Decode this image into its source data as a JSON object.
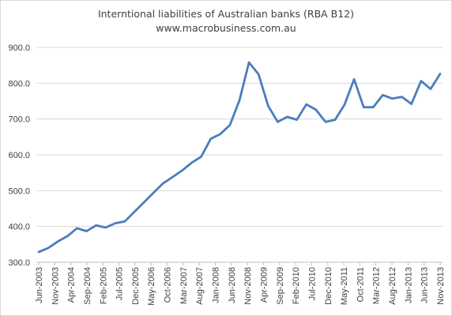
{
  "chart_data": {
    "type": "line",
    "title": "Interntional liabilities of Australian banks (RBA B12)",
    "subtitle": "www.macrobusiness.com.au",
    "xlabel": "",
    "ylabel": "",
    "ylim": [
      300,
      900
    ],
    "yticks": [
      "300.0",
      "400.0",
      "500.0",
      "600.0",
      "700.0",
      "800.0",
      "900.0"
    ],
    "grid": true,
    "legend": "none",
    "line_color": "#4a7ebb",
    "x_tick_labels": [
      "Jun-2003",
      "Nov-2003",
      "Apr-2004",
      "Sep-2004",
      "Feb-2005",
      "Jul-2005",
      "Dec-2005",
      "May-2006",
      "Oct-2006",
      "Mar-2007",
      "Aug-2007",
      "Jan-2008",
      "Jun-2008",
      "Nov-2008",
      "Apr-2009",
      "Sep-2009",
      "Feb-2010",
      "Jul-2010",
      "Dec-2010",
      "May-2011",
      "Oct-2011",
      "Mar-2012",
      "Aug-2012",
      "Jan-2013",
      "Jun-2013",
      "Nov-2013"
    ],
    "x": [
      "Jun-2003",
      "Sep-2003",
      "Dec-2003",
      "Mar-2004",
      "Jun-2004",
      "Sep-2004",
      "Dec-2004",
      "Mar-2005",
      "Jun-2005",
      "Sep-2005",
      "Dec-2005",
      "Mar-2006",
      "Jun-2006",
      "Sep-2006",
      "Dec-2006",
      "Mar-2007",
      "Jun-2007",
      "Sep-2007",
      "Dec-2007",
      "Mar-2008",
      "Jun-2008",
      "Sep-2008",
      "Dec-2008",
      "Mar-2009",
      "Jun-2009",
      "Sep-2009",
      "Dec-2009",
      "Mar-2010",
      "Jun-2010",
      "Sep-2010",
      "Dec-2010",
      "Mar-2011",
      "Jun-2011",
      "Sep-2011",
      "Dec-2011",
      "Mar-2012",
      "Jun-2012",
      "Sep-2012",
      "Dec-2012",
      "Mar-2013",
      "Jun-2013",
      "Sep-2013",
      "Dec-2013"
    ],
    "series": [
      {
        "values": [
          329,
          340,
          358,
          373,
          395,
          387,
          403,
          397,
          409,
          414,
          441,
          467,
          494,
          520,
          538,
          556,
          578,
          595,
          645,
          658,
          683,
          752,
          858,
          825,
          737,
          692,
          706,
          698,
          741,
          726,
          692,
          698,
          740,
          811,
          733,
          733,
          767,
          757,
          762,
          742,
          806,
          784,
          826
        ]
      }
    ]
  }
}
